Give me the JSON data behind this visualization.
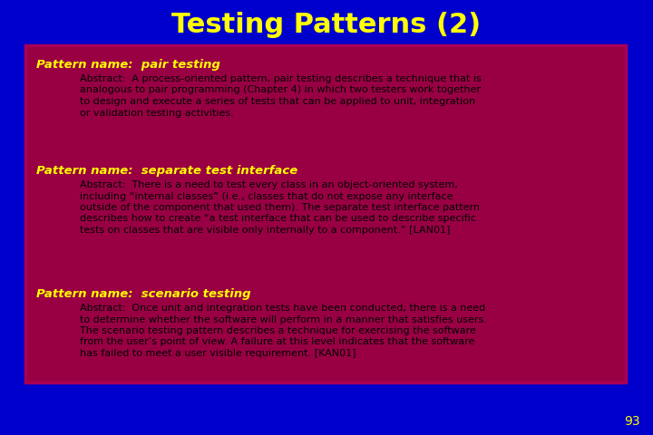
{
  "title": "Testing Patterns (2)",
  "title_color": "#FFFF00",
  "title_fontsize": 22,
  "bg_color": "#0000CC",
  "box_color": "#990044",
  "box_border_color": "#AA0055",
  "text_color": "#000000",
  "heading_color": "#FFFF00",
  "page_number": "93",
  "page_number_color": "#FFFF00",
  "patterns": [
    {
      "heading": "Pattern name:  pair testing",
      "abstract": "Abstract:  A process-oriented pattern, pair testing describes a technique that is\nanalogous to pair programming (Chapter 4) in which two testers work together\nto design and execute a series of tests that can be applied to unit, integration\nor validation testing activities."
    },
    {
      "heading": "Pattern name:  separate test interface",
      "abstract": "Abstract:  There is a need to test every class in an object-oriented system,\nincluding “internal classes” (i.e., classes that do not expose any interface\noutside of the component that used them). The separate test interface pattern\ndescribes how to create “a test interface that can be used to describe specific\ntests on classes that are visible only internally to a component.” [LAN01]"
    },
    {
      "heading": "Pattern name:  scenario testing",
      "abstract": "Abstract:  Once unit and integration tests have been conducted, there is a need\nto determine whether the software will perform in a manner that satisfies users.\nThe scenario testing pattern describes a technique for exercising the software\nfrom the user’s point of view. A failure at this level indicates that the software\nhas failed to meet a user visible requirement. [KAN01]"
    }
  ]
}
